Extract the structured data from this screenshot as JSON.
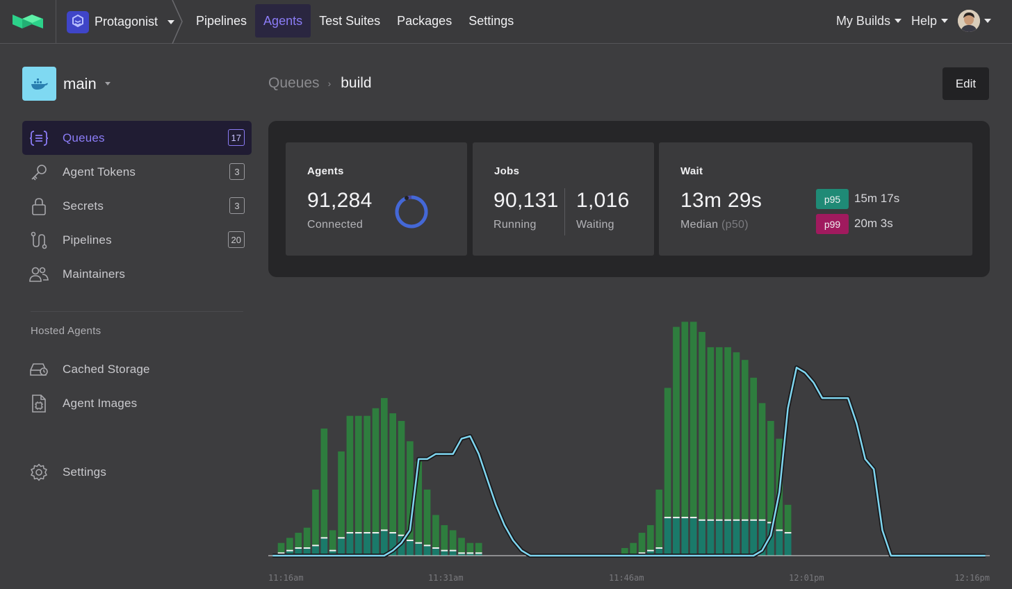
{
  "topnav": {
    "org_name": "Protagonist",
    "links": [
      {
        "label": "Pipelines",
        "active": false
      },
      {
        "label": "Agents",
        "active": true
      },
      {
        "label": "Test Suites",
        "active": false
      },
      {
        "label": "Packages",
        "active": false
      },
      {
        "label": "Settings",
        "active": false
      }
    ],
    "my_builds": "My Builds",
    "help": "Help"
  },
  "cluster": {
    "name": "main"
  },
  "sidebar": {
    "items": [
      {
        "label": "Queues",
        "count": "17",
        "icon": "queues-icon"
      },
      {
        "label": "Agent Tokens",
        "count": "3",
        "icon": "key-icon"
      },
      {
        "label": "Secrets",
        "count": "3",
        "icon": "lock-icon"
      },
      {
        "label": "Pipelines",
        "count": "20",
        "icon": "pipeline-icon"
      },
      {
        "label": "Maintainers",
        "count": "",
        "icon": "users-icon"
      }
    ],
    "hosted_title": "Hosted Agents",
    "hosted_items": [
      {
        "label": "Cached Storage",
        "icon": "storage-icon"
      },
      {
        "label": "Agent Images",
        "icon": "image-file-icon"
      }
    ],
    "settings_label": "Settings"
  },
  "breadcrumb": {
    "parent": "Queues",
    "current": "build"
  },
  "edit_label": "Edit",
  "stats": {
    "agents": {
      "title": "Agents",
      "value": "91,284",
      "sub": "Connected"
    },
    "jobs": {
      "title": "Jobs",
      "running_value": "90,131",
      "running_label": "Running",
      "waiting_value": "1,016",
      "waiting_label": "Waiting"
    },
    "wait": {
      "title": "Wait",
      "median_value": "13m 29s",
      "median_label": "Median",
      "median_hint": "(p50)",
      "p95_label": "p95",
      "p95_value": "15m 17s",
      "p99_label": "p99",
      "p99_value": "20m 3s"
    }
  },
  "colors": {
    "accent": "#8b7cf6",
    "bar_total": "#2e7d3e",
    "bar_running": "#1a7a6a",
    "wait_line": "#7fd6f0",
    "p95": "#1f8a76",
    "p99": "#a01a5e"
  },
  "chart_data": {
    "type": "bar",
    "x_tick_labels": [
      "11:16am",
      "11:31am",
      "11:46am",
      "12:01pm",
      "12:16pm"
    ],
    "ylim": [
      0,
      100
    ],
    "series": [
      {
        "name": "agents-total",
        "values": [
          0,
          5,
          7,
          9,
          11,
          26,
          50,
          10,
          41,
          55,
          55,
          55,
          58,
          62,
          56,
          53,
          45,
          37,
          26,
          16,
          12,
          10,
          7,
          5,
          5,
          0,
          0,
          0,
          0,
          0,
          0,
          0,
          0,
          0,
          0,
          0,
          0,
          0,
          0,
          0,
          0,
          3,
          5,
          9,
          12,
          26,
          66,
          90,
          92,
          92,
          88,
          82,
          82,
          82,
          80,
          77,
          70,
          60,
          53,
          46,
          20,
          0,
          0,
          0,
          0,
          0,
          0,
          0,
          0,
          0,
          0,
          0,
          0,
          0,
          0,
          0,
          0,
          0,
          0,
          0,
          0,
          0,
          0,
          0
        ]
      },
      {
        "name": "agents-running",
        "values": [
          0,
          1,
          2,
          3,
          3,
          4,
          7,
          2,
          7,
          9,
          9,
          9,
          9,
          10,
          9,
          8,
          6,
          5,
          4,
          3,
          2,
          2,
          1,
          1,
          1,
          0,
          0,
          0,
          0,
          0,
          0,
          0,
          0,
          0,
          0,
          0,
          0,
          0,
          0,
          0,
          0,
          0,
          0,
          1,
          2,
          3,
          15,
          15,
          15,
          15,
          14,
          14,
          14,
          14,
          14,
          14,
          14,
          14,
          13,
          10,
          9,
          0,
          0,
          0,
          0,
          0,
          0,
          0,
          0,
          0,
          0,
          0,
          0,
          0,
          0,
          0,
          0,
          0,
          0,
          0,
          0,
          0,
          0,
          0
        ]
      },
      {
        "name": "wait-time",
        "values": [
          0,
          0,
          0,
          0,
          0,
          0,
          0,
          0,
          0,
          0,
          0,
          0,
          0,
          0,
          2,
          5,
          10,
          38,
          38,
          40,
          40,
          40,
          46,
          47,
          40,
          30,
          20,
          12,
          6,
          2,
          0,
          0,
          0,
          0,
          0,
          0,
          0,
          0,
          0,
          0,
          0,
          0,
          0,
          0,
          0,
          0,
          0,
          0,
          0,
          0,
          0,
          0,
          0,
          0,
          0,
          0,
          0,
          2,
          8,
          25,
          58,
          74,
          72,
          68,
          62,
          62,
          62,
          62,
          52,
          38,
          34,
          10,
          0,
          0,
          0,
          0,
          0,
          0,
          0,
          0,
          0,
          0,
          0,
          0
        ]
      }
    ]
  }
}
